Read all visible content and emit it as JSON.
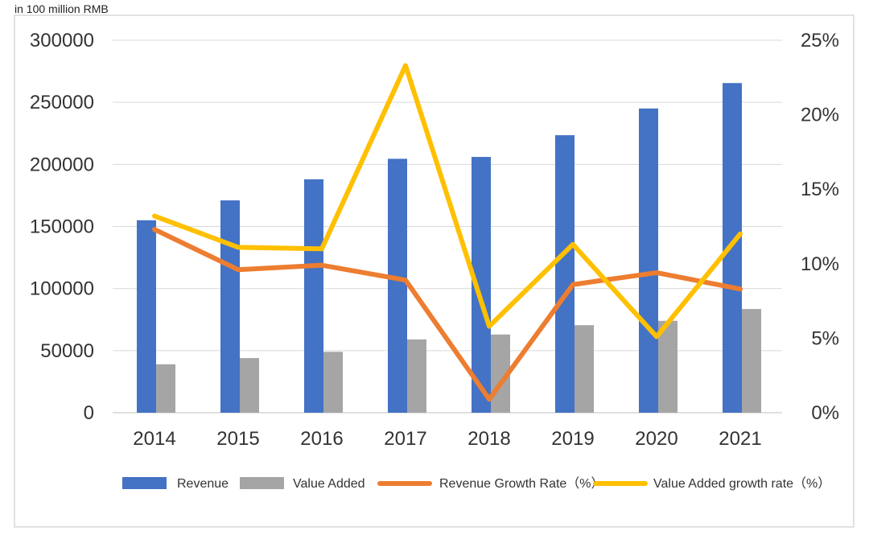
{
  "unit_label": "in 100 million RMB",
  "colors": {
    "revenue": "#4472C4",
    "value_added": "#A5A5A5",
    "revenue_growth": "#ED7D31",
    "value_added_growth": "#FFC000",
    "grid": "#d9d9d9"
  },
  "chart_data": {
    "type": "bar",
    "combo_lines": true,
    "categories": [
      "2014",
      "2015",
      "2016",
      "2017",
      "2018",
      "2019",
      "2020",
      "2021"
    ],
    "ylim_left": [
      0,
      300000
    ],
    "yticks_left": [
      "0",
      "50000",
      "100000",
      "150000",
      "200000",
      "250000",
      "300000"
    ],
    "ylim_right": [
      0,
      25
    ],
    "yticks_right": [
      "0%",
      "5%",
      "10%",
      "15%",
      "20%",
      "25%"
    ],
    "grid": true,
    "legend_position": "bottom",
    "series": [
      {
        "name": "Revenue",
        "type": "bar",
        "axis": "left",
        "values": [
          155000,
          171000,
          188000,
          204500,
          206000,
          223500,
          245000,
          265500
        ]
      },
      {
        "name": "Value Added",
        "type": "bar",
        "axis": "left",
        "values": [
          39000,
          44000,
          49000,
          59000,
          63000,
          70500,
          74000,
          83500
        ]
      },
      {
        "name": "Revenue Growth Rate（%）",
        "type": "line",
        "axis": "right",
        "values": [
          12.3,
          9.6,
          9.9,
          8.9,
          0.9,
          8.6,
          9.4,
          8.3
        ]
      },
      {
        "name": "Value Added growth rate（%）",
        "type": "line",
        "axis": "right",
        "values": [
          13.2,
          11.1,
          11.0,
          23.3,
          5.8,
          11.3,
          5.1,
          12.0
        ]
      }
    ]
  }
}
